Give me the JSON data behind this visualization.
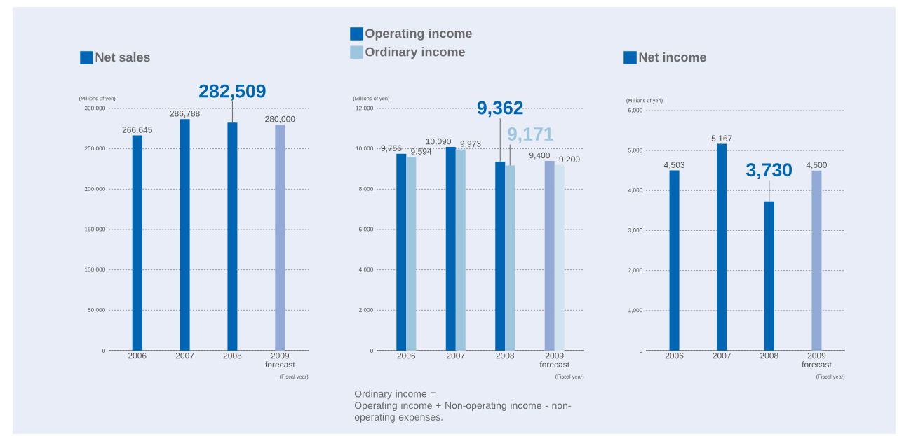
{
  "chart_data": [
    {
      "type": "bar",
      "categories": [
        "2006",
        "2007",
        "2008",
        "2009 forecast"
      ],
      "xlabel": "(Fiscal year)",
      "ylabel": "(Millions of yen)",
      "series": [
        {
          "name": "Net sales",
          "color": "#0066b3",
          "colors": [
            "#0066b3",
            "#0066b3",
            "#0066b3",
            "#93a9d6"
          ],
          "values": [
            266645,
            286788,
            282509,
            280000
          ],
          "value_labels": [
            "266,645",
            "286,788",
            null,
            "280,000"
          ]
        }
      ],
      "annotations": [
        {
          "text": "282,509",
          "x": "2008",
          "y": 282509
        }
      ],
      "ylim": [
        0,
        300000
      ],
      "yticks": [
        0,
        {
          "value": 50000,
          "label": "50,000"
        },
        {
          "value": 100000,
          "label": "100,000"
        },
        {
          "value": 150000,
          "label": "150,000"
        },
        {
          "value": 200000,
          "label": "200,000"
        },
        {
          "value": 250000,
          "label": "250,000"
        },
        {
          "value": 300000,
          "label": "300,000"
        }
      ],
      "grid": "y",
      "legend": "top left"
    },
    {
      "type": "bar",
      "categories": [
        "2006",
        "2007",
        "2008",
        "2009 forecast"
      ],
      "xlabel": "(Fiscal year)",
      "ylabel": "(Millions of yen)",
      "series": [
        {
          "name": "Operating income",
          "color": "#0066b3",
          "colors": [
            "#0066b3",
            "#0066b3",
            "#0066b3",
            "#93a9d6"
          ],
          "values": [
            9756,
            10090,
            9362,
            9400
          ],
          "value_labels": [
            "9,756",
            "10,090",
            null,
            "9,400"
          ]
        },
        {
          "name": "Ordinary income",
          "color": "#9cc6de",
          "colors": [
            "#9cc6de",
            "#9cc6de",
            "#9cc6de",
            "#d0e4ef"
          ],
          "values": [
            9594,
            9973,
            9171,
            9200
          ],
          "value_labels": [
            "9,594",
            "9,973",
            null,
            "9,200"
          ]
        }
      ],
      "annotations": [
        {
          "text": "9,362",
          "x": "2008",
          "y": 9362
        },
        {
          "text": "9,171",
          "x": "2008",
          "y": 9171
        },
        "Ordinary income =",
        "Operating income + Non-operating income - non-operating expenses."
      ],
      "ylim": [
        0,
        12000
      ],
      "yticks": [
        0,
        {
          "value": 2000,
          "label": "2,000"
        },
        {
          "value": 4000,
          "label": "4,000"
        },
        {
          "value": 6000,
          "label": "6,000"
        },
        {
          "value": 8000,
          "label": "8,000"
        },
        {
          "value": 10000,
          "label": "10,000"
        },
        {
          "value": 12000,
          "label": "12,000"
        }
      ],
      "grid": "y",
      "legend": "top left"
    },
    {
      "type": "bar",
      "categories": [
        "2006",
        "2007",
        "2008",
        "2009 forecast"
      ],
      "xlabel": "(Fiscal year)",
      "ylabel": "(Millions of yen)",
      "series": [
        {
          "name": "Net income",
          "color": "#0066b3",
          "colors": [
            "#0066b3",
            "#0066b3",
            "#0066b3",
            "#93a9d6"
          ],
          "values": [
            4503,
            5167,
            3730,
            4500
          ],
          "value_labels": [
            "4,503",
            "5,167",
            null,
            "4,500"
          ]
        }
      ],
      "annotations": [
        {
          "text": "3,730",
          "x": "2008",
          "y": 3730
        }
      ],
      "ylim": [
        0,
        6000
      ],
      "yticks": [
        0,
        {
          "value": 1000,
          "label": "1,000"
        },
        {
          "value": 2000,
          "label": "2,000"
        },
        {
          "value": 3000,
          "label": "3,000"
        },
        {
          "value": 4000,
          "label": "4,000"
        },
        {
          "value": 5000,
          "label": "5,000"
        },
        {
          "value": 6000,
          "label": "6,000"
        }
      ],
      "grid": "y",
      "legend": "top left"
    }
  ]
}
